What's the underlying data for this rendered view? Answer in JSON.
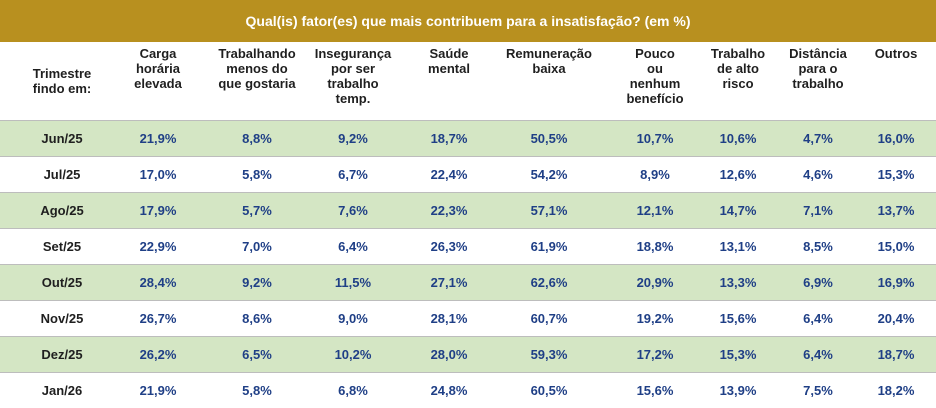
{
  "table": {
    "title": "Qual(is) fator(es) que mais contribuem para a insatisfação? (em %)",
    "columns": [
      "Trimestre\nfindo em:",
      "Carga\nhorária\nelevada",
      "Trabalhando\nmenos do\nque gostaria",
      "Insegurança\npor ser\ntrabalho\ntemp.",
      "Saúde\nmental",
      "Remuneração\nbaixa",
      "Pouco\nou\nnenhum\nbenefício",
      "Trabalho\nde alto\nrisco",
      "Distância\npara o\ntrabalho",
      "Outros"
    ],
    "rows": [
      {
        "period": "Jun/25",
        "values": [
          "21,9%",
          "8,8%",
          "9,2%",
          "18,7%",
          "50,5%",
          "10,7%",
          "10,6%",
          "4,7%",
          "16,0%"
        ]
      },
      {
        "period": "Jul/25",
        "values": [
          "17,0%",
          "5,8%",
          "6,7%",
          "22,4%",
          "54,2%",
          "8,9%",
          "12,6%",
          "4,6%",
          "15,3%"
        ]
      },
      {
        "period": "Ago/25",
        "values": [
          "17,9%",
          "5,7%",
          "7,6%",
          "22,3%",
          "57,1%",
          "12,1%",
          "14,7%",
          "7,1%",
          "13,7%"
        ]
      },
      {
        "period": "Set/25",
        "values": [
          "22,9%",
          "7,0%",
          "6,4%",
          "26,3%",
          "61,9%",
          "18,8%",
          "13,1%",
          "8,5%",
          "15,0%"
        ]
      },
      {
        "period": "Out/25",
        "values": [
          "28,4%",
          "9,2%",
          "11,5%",
          "27,1%",
          "62,6%",
          "20,9%",
          "13,3%",
          "6,9%",
          "16,9%"
        ]
      },
      {
        "period": "Nov/25",
        "values": [
          "26,7%",
          "8,6%",
          "9,0%",
          "28,1%",
          "60,7%",
          "19,2%",
          "15,6%",
          "6,4%",
          "20,4%"
        ]
      },
      {
        "period": "Dez/25",
        "values": [
          "26,2%",
          "6,5%",
          "10,2%",
          "28,0%",
          "59,3%",
          "17,2%",
          "15,3%",
          "6,4%",
          "18,7%"
        ]
      },
      {
        "period": "Jan/26",
        "values": [
          "21,9%",
          "5,8%",
          "6,8%",
          "24,8%",
          "60,5%",
          "15,6%",
          "13,9%",
          "7,5%",
          "18,2%"
        ]
      }
    ]
  }
}
